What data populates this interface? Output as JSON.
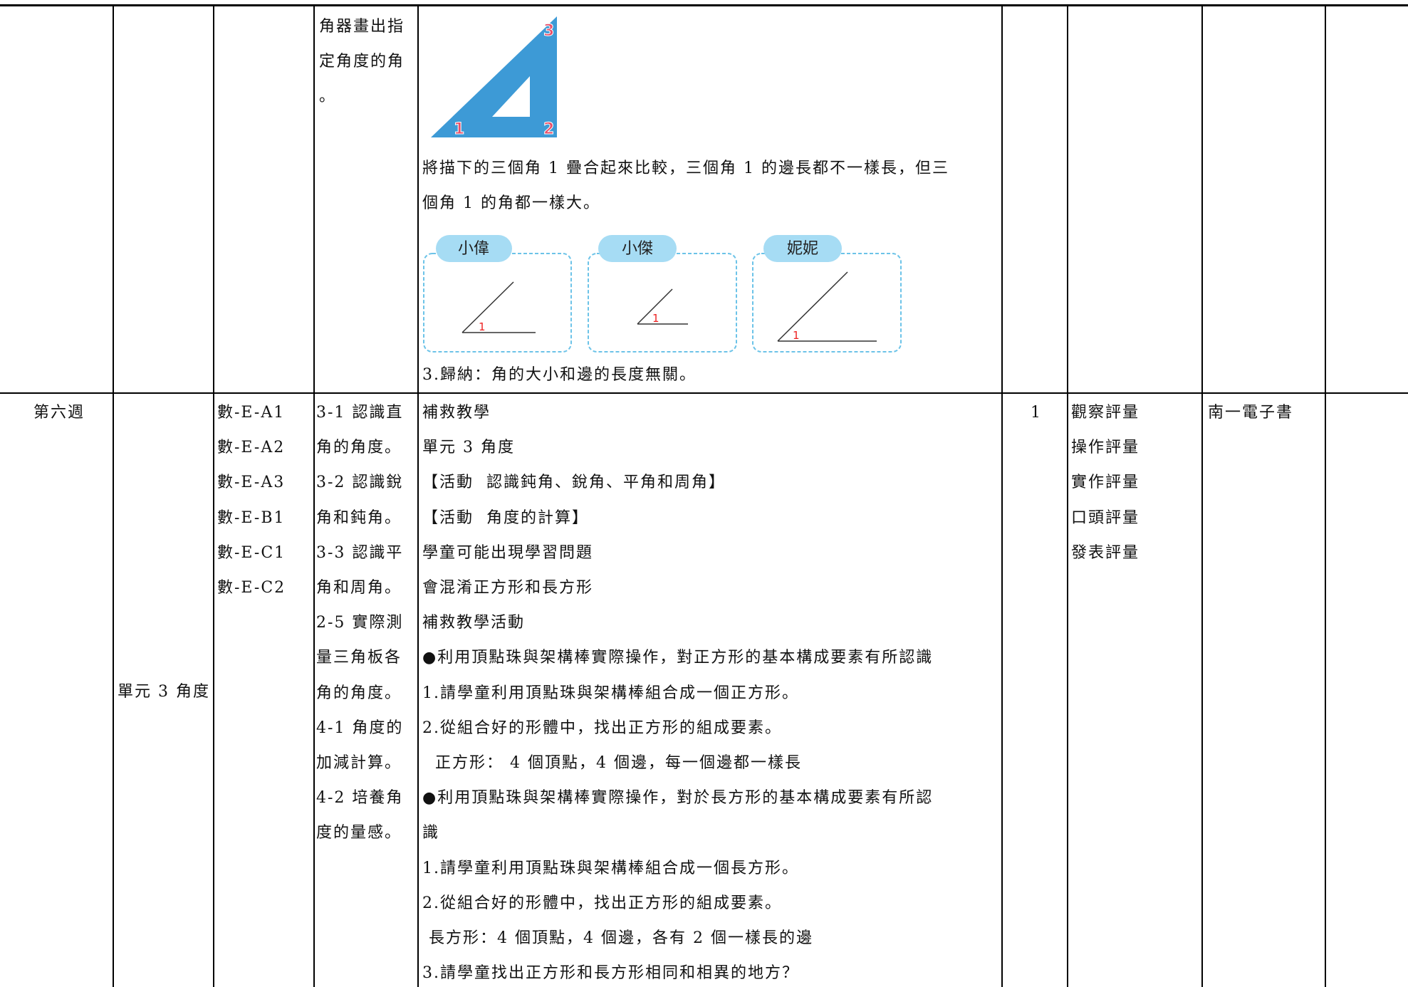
{
  "table": {
    "rows": [
      {
        "objective": [
          "角器畫出指",
          "定角度的角",
          "。"
        ],
        "content": {
          "ruler_labels": [
            "1",
            "2",
            "3"
          ],
          "paragraph": [
            "將描下的三個角 1 疊合起來比較，三個角 1 的邊長都不一樣長，但三",
            "個角 1 的角都一樣大。"
          ],
          "names": [
            "小偉",
            "小傑",
            "妮妮"
          ],
          "angle_mark": "1",
          "conclusion": "3.歸納：角的大小和邊的長度無關。"
        }
      },
      {
        "week": "第六週",
        "unit": "單元 3 角度",
        "competencies": [
          "數-E-A1",
          "數-E-A2",
          "數-E-A3",
          "數-E-B1",
          "數-E-C1",
          "數-E-C2"
        ],
        "objectives": [
          "3-1 認識直",
          "角的角度。",
          "3-2 認識銳",
          "角和鈍角。",
          "3-3 認識平",
          "角和周角。",
          "2-5 實際測",
          "量三角板各",
          "角的角度。",
          "4-1 角度的",
          "加減計算。",
          "4-2 培養角",
          "度的量感。"
        ],
        "content": [
          "補救教學",
          "單元 3 角度",
          "【活動  認識鈍角、銳角、平角和周角】",
          "【活動  角度的計算】",
          "學童可能出現學習問題",
          "會混淆正方形和長方形",
          "補救教學活動",
          "●利用頂點珠與架構棒實際操作，對正方形的基本構成要素有所認識",
          "1.請學童利用頂點珠與架構棒組合成一個正方形。",
          "2.從組合好的形體中，找出正方形的組成要素。",
          "  正方形： 4 個頂點，4 個邊，每一個邊都一樣長",
          "●利用頂點珠與架構棒實際操作，對於長方形的基本構成要素有所認",
          "識",
          "1.請學童利用頂點珠與架構棒組合成一個長方形。",
          "2.從組合好的形體中，找出正方形的組成要素。",
          " 長方形：4 個頂點，4 個邊，各有 2 個一樣長的邊",
          "3.請學童找出正方形和長方形相同和相異的地方？"
        ],
        "periods": "1",
        "assessment": [
          "觀察評量",
          "操作評量",
          "實作評量",
          "口頭評量",
          "發表評量"
        ],
        "resources": "南一電子書"
      }
    ]
  }
}
